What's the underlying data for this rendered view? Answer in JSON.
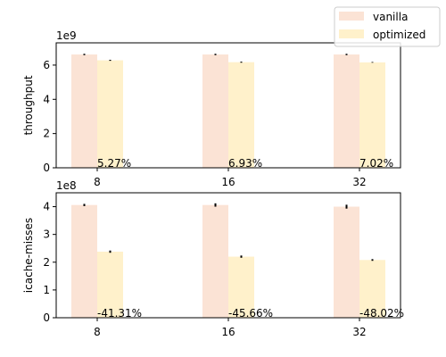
{
  "chart_data": [
    {
      "type": "bar",
      "ylabel": "throughput",
      "y_offset_label": "1e9",
      "categories": [
        "8",
        "16",
        "32"
      ],
      "ylim": [
        0,
        7.3
      ],
      "yticks": [
        0,
        2,
        4,
        6
      ],
      "yticklabels": [
        "0",
        "2",
        "4",
        "6"
      ],
      "series": [
        {
          "name": "vanilla",
          "values": [
            6.62,
            6.62,
            6.62
          ],
          "errors": [
            0.04,
            0.04,
            0.04
          ]
        },
        {
          "name": "optimized",
          "values": [
            6.28,
            6.17,
            6.16
          ],
          "errors": [
            0.03,
            0.03,
            0.02
          ]
        }
      ],
      "annotations": [
        "5.27%",
        "6.93%",
        "7.02%"
      ]
    },
    {
      "type": "bar",
      "ylabel": "icache-misses",
      "y_offset_label": "1e8",
      "categories": [
        "8",
        "16",
        "32"
      ],
      "ylim": [
        0,
        4.5
      ],
      "yticks": [
        0,
        1,
        2,
        3,
        4
      ],
      "yticklabels": [
        "0",
        "1",
        "2",
        "3",
        "4"
      ],
      "series": [
        {
          "name": "vanilla",
          "values": [
            4.06,
            4.06,
            4.0
          ],
          "errors": [
            0.04,
            0.06,
            0.07
          ]
        },
        {
          "name": "optimized",
          "values": [
            2.38,
            2.2,
            2.08
          ],
          "errors": [
            0.04,
            0.04,
            0.03
          ]
        }
      ],
      "annotations": [
        "-41.31%",
        "-45.66%",
        "-48.02%"
      ]
    }
  ],
  "legend": {
    "placement": "top-right",
    "items": [
      {
        "label": "vanilla",
        "color": "#fbe3d5"
      },
      {
        "label": "optimized",
        "color": "#fff1cb"
      }
    ]
  }
}
